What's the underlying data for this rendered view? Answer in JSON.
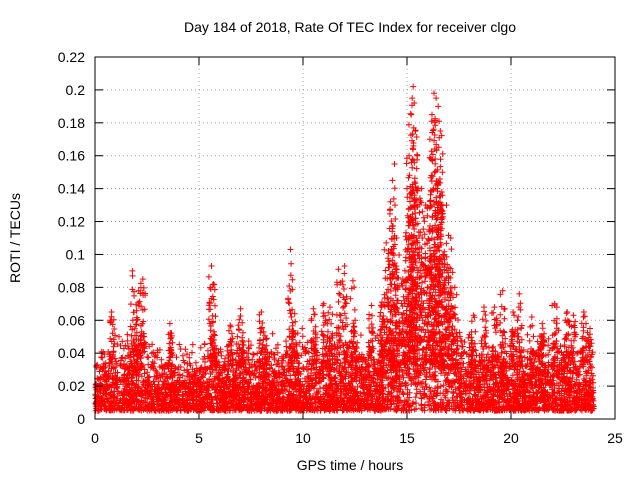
{
  "chart_data": {
    "type": "scatter",
    "title": "Day 184 of 2018, Rate Of TEC Index for receiver clgo",
    "xlabel": "GPS time / hours",
    "ylabel": "ROTI / TECUs",
    "xlim": [
      0,
      25
    ],
    "ylim": [
      0,
      0.22
    ],
    "xticks": [
      0,
      5,
      10,
      15,
      20,
      25
    ],
    "xtick_labels": [
      "0",
      "5",
      "10",
      "15",
      "20",
      "25"
    ],
    "yticks": [
      0,
      0.02,
      0.04,
      0.06,
      0.08,
      0.1,
      0.12,
      0.14,
      0.16,
      0.18,
      0.2,
      0.22
    ],
    "ytick_labels": [
      "0",
      "0.02",
      "0.04",
      "0.06",
      "0.08",
      "0.1",
      "0.12",
      "0.14",
      "0.16",
      "0.18",
      "0.2",
      "0.22"
    ],
    "grid": true,
    "marker": "+",
    "colors": {
      "points": "#ff0000",
      "axis": "#000000",
      "grid": "#a0a0a0"
    },
    "series": [
      {
        "name": "ROTI",
        "envelope": {
          "hours": [
            0,
            0.5,
            1,
            1.5,
            2,
            2.5,
            3,
            3.5,
            4,
            4.5,
            5,
            5.5,
            6,
            6.5,
            7,
            7.5,
            8,
            8.5,
            9,
            9.5,
            10,
            10.5,
            11,
            11.5,
            12,
            12.5,
            13,
            13.5,
            14,
            14.5,
            15,
            15.5,
            16,
            16.5,
            17,
            17.5,
            18,
            18.5,
            19,
            19.5,
            20,
            20.5,
            21,
            21.5,
            22,
            22.5,
            23,
            23.5,
            24
          ],
          "typical_max": [
            0.03,
            0.04,
            0.05,
            0.045,
            0.06,
            0.045,
            0.04,
            0.04,
            0.04,
            0.04,
            0.04,
            0.045,
            0.04,
            0.045,
            0.045,
            0.045,
            0.045,
            0.045,
            0.045,
            0.05,
            0.05,
            0.05,
            0.045,
            0.05,
            0.05,
            0.05,
            0.05,
            0.05,
            0.08,
            0.06,
            0.1,
            0.12,
            0.12,
            0.12,
            0.1,
            0.05,
            0.045,
            0.045,
            0.045,
            0.045,
            0.045,
            0.045,
            0.045,
            0.045,
            0.05,
            0.045,
            0.04,
            0.045,
            0.03
          ],
          "floor": 0.005
        },
        "peaks": [
          [
            0.8,
            0.065
          ],
          [
            1.8,
            0.09
          ],
          [
            2.3,
            0.085
          ],
          [
            2.1,
            0.078
          ],
          [
            3.6,
            0.058
          ],
          [
            5.6,
            0.093
          ],
          [
            5.7,
            0.082
          ],
          [
            6.5,
            0.057
          ],
          [
            7.0,
            0.067
          ],
          [
            8.0,
            0.065
          ],
          [
            9.4,
            0.103
          ],
          [
            9.6,
            0.064
          ],
          [
            10.5,
            0.067
          ],
          [
            11.0,
            0.07
          ],
          [
            11.3,
            0.068
          ],
          [
            11.7,
            0.091
          ],
          [
            12.0,
            0.093
          ],
          [
            12.4,
            0.084
          ],
          [
            13.3,
            0.069
          ],
          [
            13.8,
            0.071
          ],
          [
            14.0,
            0.107
          ],
          [
            14.2,
            0.132
          ],
          [
            14.3,
            0.145
          ],
          [
            14.4,
            0.155
          ],
          [
            14.5,
            0.11
          ],
          [
            14.8,
            0.085
          ],
          [
            15.0,
            0.14
          ],
          [
            15.1,
            0.16
          ],
          [
            15.2,
            0.185
          ],
          [
            15.25,
            0.195
          ],
          [
            15.3,
            0.202
          ],
          [
            15.4,
            0.175
          ],
          [
            15.5,
            0.16
          ],
          [
            15.7,
            0.14
          ],
          [
            15.9,
            0.13
          ],
          [
            16.1,
            0.17
          ],
          [
            16.2,
            0.185
          ],
          [
            16.3,
            0.198
          ],
          [
            16.4,
            0.195
          ],
          [
            16.5,
            0.19
          ],
          [
            16.6,
            0.175
          ],
          [
            16.7,
            0.15
          ],
          [
            16.9,
            0.13
          ],
          [
            17.1,
            0.11
          ],
          [
            17.3,
            0.08
          ],
          [
            18.2,
            0.063
          ],
          [
            18.7,
            0.068
          ],
          [
            19.2,
            0.068
          ],
          [
            19.6,
            0.078
          ],
          [
            20.1,
            0.065
          ],
          [
            20.4,
            0.076
          ],
          [
            21.0,
            0.062
          ],
          [
            21.5,
            0.058
          ],
          [
            22.1,
            0.07
          ],
          [
            22.7,
            0.065
          ],
          [
            23.0,
            0.063
          ],
          [
            23.5,
            0.065
          ],
          [
            23.8,
            0.055
          ]
        ]
      }
    ]
  }
}
